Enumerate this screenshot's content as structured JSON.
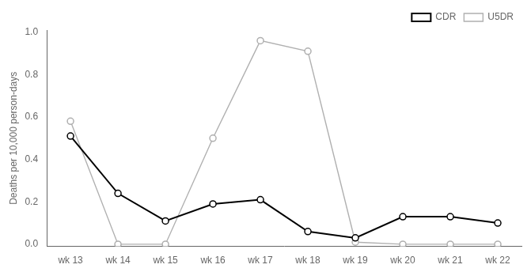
{
  "chart_data": {
    "type": "line",
    "categories": [
      "wk 13",
      "wk 14",
      "wk 15",
      "wk 16",
      "wk 17",
      "wk 18",
      "wk 19",
      "wk 20",
      "wk 21",
      "wk 22"
    ],
    "series": [
      {
        "name": "CDR",
        "color": "#000000",
        "values": [
          0.51,
          0.24,
          0.11,
          0.19,
          0.21,
          0.06,
          0.03,
          0.13,
          0.13,
          0.1
        ]
      },
      {
        "name": "U5DR",
        "color": "#b0b0b0",
        "values": [
          0.58,
          0.0,
          0.0,
          0.5,
          0.96,
          0.91,
          0.01,
          0.0,
          0.0,
          0.0
        ]
      }
    ],
    "ylabel": "Deaths per 10,000 person-days",
    "ylim": [
      -0.01,
      1.01
    ],
    "yticks": [
      {
        "value": 0,
        "label": "0.0"
      },
      0.2,
      0.4,
      0.6,
      0.8,
      {
        "value": 1,
        "label": "1.0"
      }
    ],
    "marker": "circle",
    "grid": false,
    "legend": "upper right"
  }
}
